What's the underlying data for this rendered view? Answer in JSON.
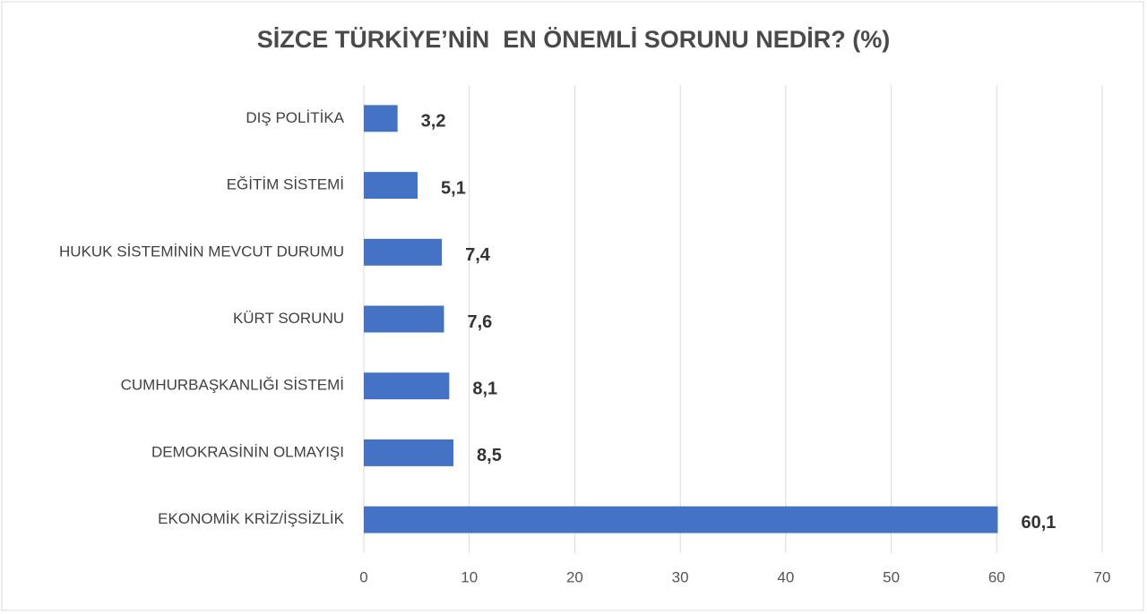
{
  "chart_data": {
    "type": "bar",
    "orientation": "horizontal",
    "title": "SİZCE TÜRKİYE’NİN  EN ÖNEMLİ SORUNU NEDİR? (%)",
    "categories": [
      "DIŞ POLİTİKA",
      "EĞİTİM SİSTEMİ",
      "HUKUK SİSTEMİNİN MEVCUT DURUMU",
      "KÜRT SORUNU",
      "CUMHURBAŞKANLIĞI SİSTEMİ",
      "DEMOKRASİNİN OLMAYIŞI",
      "EKONOMİK KRİZ/İŞSİZLİK"
    ],
    "values": [
      3.2,
      5.1,
      7.4,
      7.6,
      8.1,
      8.5,
      60.1
    ],
    "value_labels": [
      "3,2",
      "5,1",
      "7,4",
      "7,6",
      "8,1",
      "8,5",
      "60,1"
    ],
    "color": "#4472c4",
    "xlim": [
      0,
      70
    ],
    "xticks": [
      0,
      10,
      20,
      30,
      40,
      50,
      60,
      70
    ],
    "grid": true
  }
}
